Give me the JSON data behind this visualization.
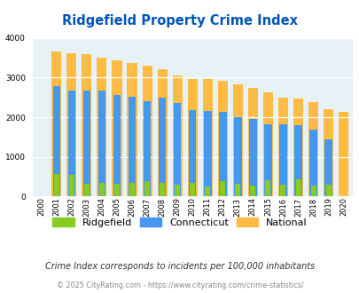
{
  "title": "Ridgefield Property Crime Index",
  "title_color": "#0055bb",
  "years": [
    2000,
    2001,
    2002,
    2003,
    2004,
    2005,
    2006,
    2007,
    2008,
    2009,
    2010,
    2011,
    2012,
    2013,
    2014,
    2015,
    2016,
    2017,
    2018,
    2019,
    2020
  ],
  "ridgefield": [
    0,
    570,
    550,
    310,
    330,
    310,
    330,
    390,
    330,
    290,
    330,
    260,
    380,
    310,
    265,
    400,
    285,
    430,
    265,
    290,
    0
  ],
  "connecticut": [
    0,
    2790,
    2680,
    2680,
    2680,
    2570,
    2510,
    2400,
    2500,
    2360,
    2190,
    2160,
    2130,
    2010,
    1960,
    1815,
    1820,
    1800,
    1680,
    1430,
    0
  ],
  "national": [
    0,
    3660,
    3620,
    3600,
    3510,
    3440,
    3370,
    3300,
    3220,
    3060,
    2970,
    2960,
    2915,
    2840,
    2740,
    2630,
    2500,
    2470,
    2380,
    2200,
    2130
  ],
  "ridgefield_color": "#88cc22",
  "connecticut_color": "#4499ee",
  "national_color": "#ffbb44",
  "bg_color": "#e6f2f5",
  "ylim": [
    0,
    4000
  ],
  "yticks": [
    0,
    1000,
    2000,
    3000,
    4000
  ],
  "footer_text": "Crime Index corresponds to incidents per 100,000 inhabitants",
  "copyright_text": "© 2025 CityRating.com - https://www.cityrating.com/crime-statistics/",
  "legend_labels": [
    "Ridgefield",
    "Connecticut",
    "National"
  ]
}
